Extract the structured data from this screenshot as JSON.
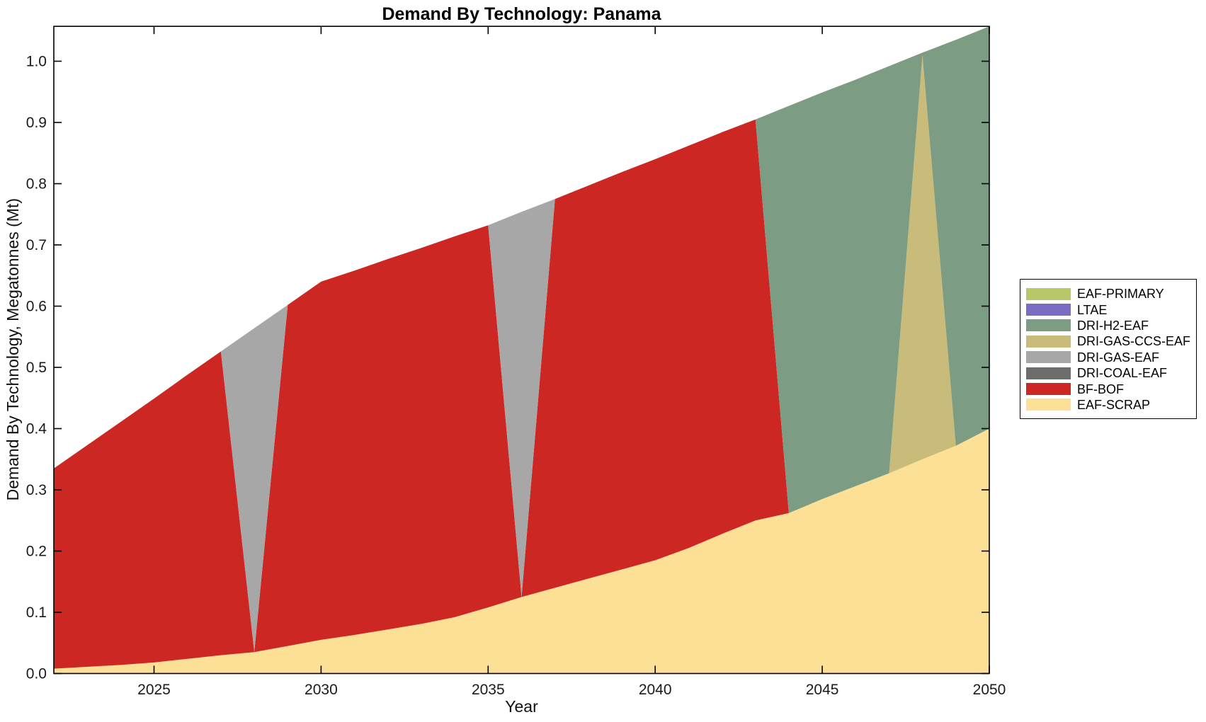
{
  "chart_data": {
    "type": "area",
    "stacked": true,
    "title": "Demand By Technology: Panama",
    "xlabel": "Year",
    "ylabel": "Demand By Technology, Megatonnes (Mt)",
    "grid": false,
    "legend_position": "right-outside",
    "xlim": [
      2022,
      2050
    ],
    "ylim": [
      0,
      1.057
    ],
    "x_ticks": [
      2025,
      2030,
      2035,
      2040,
      2045,
      2050
    ],
    "x_ticklabels": [
      "2025",
      "2030",
      "2035",
      "2040",
      "2045",
      "2050"
    ],
    "y_ticks": [
      0,
      0.1,
      0.2,
      0.3,
      0.4,
      0.5,
      0.6,
      0.7,
      0.8,
      0.9,
      1.0
    ],
    "y_ticklabels": [
      "0.0",
      "0.1",
      "0.2",
      "0.3",
      "0.4",
      "0.5",
      "0.6",
      "0.7",
      "0.8",
      "0.9",
      "1.0"
    ],
    "x": [
      2022,
      2023,
      2024,
      2025,
      2026,
      2027,
      2028,
      2029,
      2030,
      2031,
      2032,
      2033,
      2034,
      2035,
      2036,
      2037,
      2038,
      2039,
      2040,
      2041,
      2042,
      2043,
      2044,
      2045,
      2046,
      2047,
      2048,
      2049,
      2050
    ],
    "series_note": "series listed bottom-to-top of stack; values in Mt",
    "series": [
      {
        "name": "EAF-SCRAP",
        "color": "#fce095",
        "values": [
          0.008,
          0.011,
          0.014,
          0.018,
          0.024,
          0.03,
          0.035,
          0.045,
          0.055,
          0.063,
          0.072,
          0.081,
          0.092,
          0.108,
          0.125,
          0.14,
          0.155,
          0.17,
          0.185,
          0.205,
          0.228,
          0.25,
          0.262,
          0.285,
          0.306,
          0.327,
          0.35,
          0.372,
          0.4
        ]
      },
      {
        "name": "BF-BOF",
        "color": "#cd2723",
        "values": [
          0.327,
          0.362,
          0.397,
          0.431,
          0.464,
          0.496,
          0,
          0.557,
          0.585,
          0.595,
          0.605,
          0.614,
          0.622,
          0.624,
          0,
          0.635,
          0.642,
          0.649,
          0.655,
          0.657,
          0.656,
          0.655,
          0,
          0,
          0,
          0,
          0,
          0,
          0
        ]
      },
      {
        "name": "DRI-COAL-EAF",
        "color": "#6d6d6d",
        "values": [
          0,
          0,
          0,
          0,
          0,
          0,
          0,
          0,
          0,
          0,
          0,
          0,
          0,
          0,
          0,
          0,
          0,
          0,
          0,
          0,
          0,
          0,
          0,
          0,
          0,
          0,
          0,
          0,
          0
        ]
      },
      {
        "name": "DRI-GAS-EAF",
        "color": "#a7a7a7",
        "values": [
          0,
          0,
          0,
          0,
          0,
          0,
          0.529,
          0,
          0,
          0,
          0,
          0,
          0,
          0,
          0.629,
          0,
          0,
          0,
          0,
          0,
          0,
          0,
          0,
          0,
          0,
          0,
          0,
          0,
          0
        ]
      },
      {
        "name": "DRI-GAS-CCS-EAF",
        "color": "#c9bc7b",
        "values": [
          0,
          0,
          0,
          0,
          0,
          0,
          0,
          0,
          0,
          0,
          0,
          0,
          0,
          0,
          0,
          0,
          0,
          0,
          0,
          0,
          0,
          0,
          0,
          0,
          0,
          0,
          0.66,
          0,
          0
        ]
      },
      {
        "name": "DRI-H2-EAF",
        "color": "#7c9c84",
        "values": [
          0,
          0,
          0,
          0,
          0,
          0,
          0,
          0,
          0,
          0,
          0,
          0,
          0,
          0,
          0,
          0,
          0,
          0,
          0,
          0,
          0,
          0,
          0.665,
          0.664,
          0.664,
          0.665,
          0.004,
          0.663,
          0.657
        ]
      },
      {
        "name": "LTAE",
        "color": "#7a6cc3",
        "values": [
          0,
          0,
          0,
          0,
          0,
          0,
          0,
          0,
          0,
          0,
          0,
          0,
          0,
          0,
          0,
          0,
          0,
          0,
          0,
          0,
          0,
          0,
          0,
          0,
          0,
          0,
          0,
          0,
          0
        ]
      },
      {
        "name": "EAF-PRIMARY",
        "color": "#b9c768",
        "values": [
          0,
          0,
          0,
          0,
          0,
          0,
          0,
          0,
          0,
          0,
          0,
          0,
          0,
          0,
          0,
          0,
          0,
          0,
          0,
          0,
          0,
          0,
          0,
          0,
          0,
          0,
          0,
          0,
          0
        ]
      }
    ],
    "legend_order_top_to_bottom": [
      "EAF-PRIMARY",
      "LTAE",
      "DRI-H2-EAF",
      "DRI-GAS-CCS-EAF",
      "DRI-GAS-EAF",
      "DRI-COAL-EAF",
      "BF-BOF",
      "EAF-SCRAP"
    ],
    "colors": {
      "frame": "#000000",
      "tick_text": "#1a1a1a",
      "background": "#ffffff"
    }
  }
}
